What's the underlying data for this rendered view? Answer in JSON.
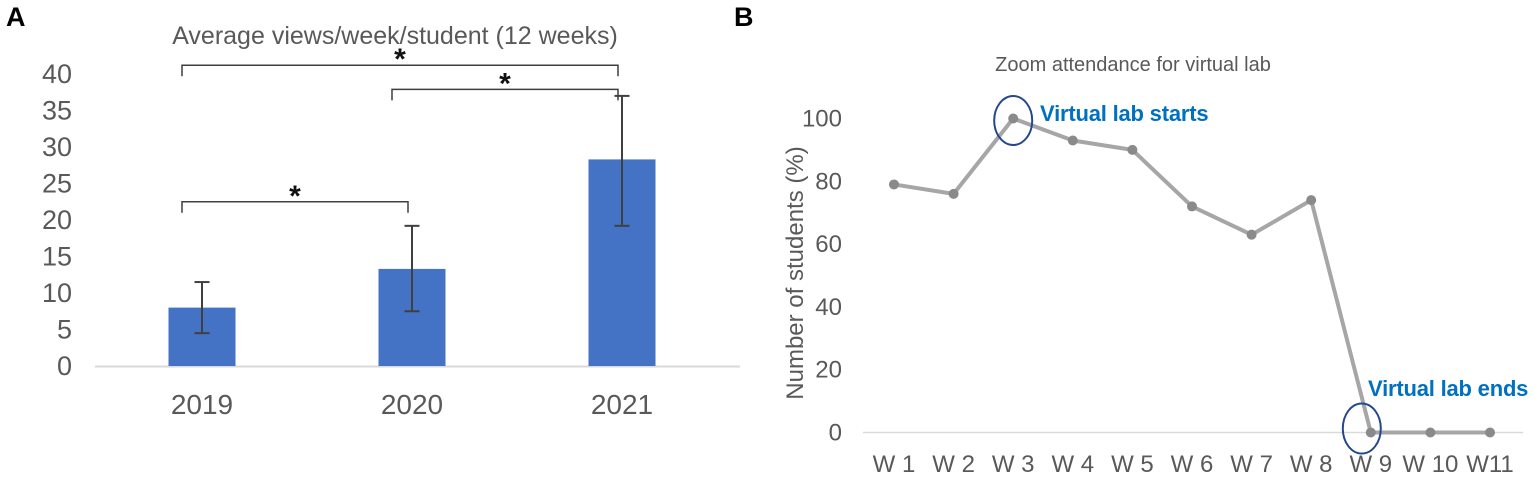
{
  "figure": {
    "panels": {
      "a": {
        "label": "A"
      },
      "b": {
        "label": "B"
      }
    }
  },
  "chart_data": [
    {
      "id": "panelA",
      "type": "bar",
      "title": "Average views/week/student (12 weeks)",
      "xlabel": "",
      "ylabel": "",
      "categories": [
        "2019",
        "2020",
        "2021"
      ],
      "values": [
        8,
        13.3,
        28.3
      ],
      "error_low": [
        4.5,
        7.5,
        19.2
      ],
      "error_high": [
        11.5,
        19.2,
        37
      ],
      "ylim": [
        0,
        40
      ],
      "yticks": [
        0,
        5,
        10,
        15,
        20,
        25,
        30,
        35,
        40
      ],
      "grid": false,
      "legend": false,
      "significance_brackets": [
        {
          "between": [
            0,
            2
          ],
          "y": 41.2,
          "label": "*"
        },
        {
          "between": [
            1,
            2
          ],
          "y": 37.9,
          "label": "*"
        },
        {
          "between": [
            0,
            1
          ],
          "y": 22.5,
          "label": "*"
        }
      ],
      "colors": {
        "bar": "#4472C4",
        "error": "#404040",
        "bracket": "#3f3f3f",
        "star": "#111111",
        "axis_line": "#D9D9D9",
        "text": "#595959"
      }
    },
    {
      "id": "panelB",
      "type": "line",
      "title": "Zoom attendance for virtual lab",
      "xlabel": "",
      "ylabel": "Number of students (%)",
      "categories": [
        "W 1",
        "W 2",
        "W 3",
        "W 4",
        "W 5",
        "W 6",
        "W 7",
        "W 8",
        "W 9",
        "W 10",
        "W11"
      ],
      "values": [
        79,
        76,
        100,
        93,
        90,
        72,
        63,
        74,
        0,
        0,
        0
      ],
      "ylim": [
        0,
        100
      ],
      "yticks": [
        0,
        20,
        40,
        60,
        80,
        100
      ],
      "grid": false,
      "legend": false,
      "annotations": [
        {
          "text": "Virtual lab starts",
          "at_category": "W 3",
          "color": "#0070C0",
          "circle_color": "#24478F"
        },
        {
          "text": "Virtual lab ends",
          "at_category": "W 9",
          "color": "#0070C0",
          "circle_color": "#24478F"
        }
      ],
      "colors": {
        "line": "#A6A6A6",
        "marker": "#8A8A8A",
        "axis_line": "#D9D9D9",
        "text": "#595959"
      }
    }
  ]
}
